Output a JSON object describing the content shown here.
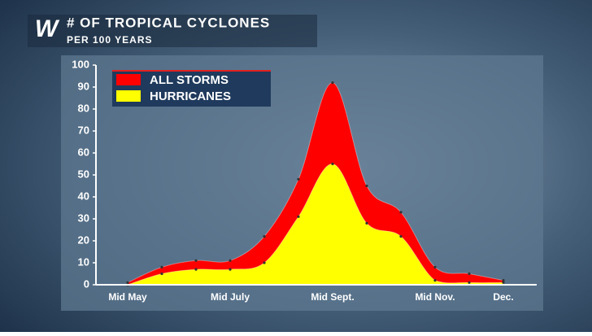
{
  "chart_data": {
    "type": "area",
    "title": "# OF TROPICAL CYCLONES",
    "subtitle": "PER 100 YEARS",
    "logo": "W",
    "categories": [
      "Mid May",
      null,
      null,
      "Mid July",
      null,
      null,
      "Mid Sept.",
      null,
      null,
      "Mid Nov.",
      null,
      "Dec."
    ],
    "series": [
      {
        "name": "ALL STORMS",
        "color": "#ff0000",
        "values": [
          1,
          8,
          11,
          11,
          22,
          48,
          92,
          45,
          33,
          8,
          5,
          2
        ]
      },
      {
        "name": "HURRICANES",
        "color": "#ffff00",
        "values": [
          0,
          5,
          7,
          7,
          10,
          31,
          55,
          28,
          22,
          2,
          1,
          1
        ]
      }
    ],
    "ylim": [
      0,
      100
    ],
    "yticks": [
      0,
      10,
      20,
      30,
      40,
      50,
      60,
      70,
      80,
      90,
      100
    ],
    "grid": false
  }
}
